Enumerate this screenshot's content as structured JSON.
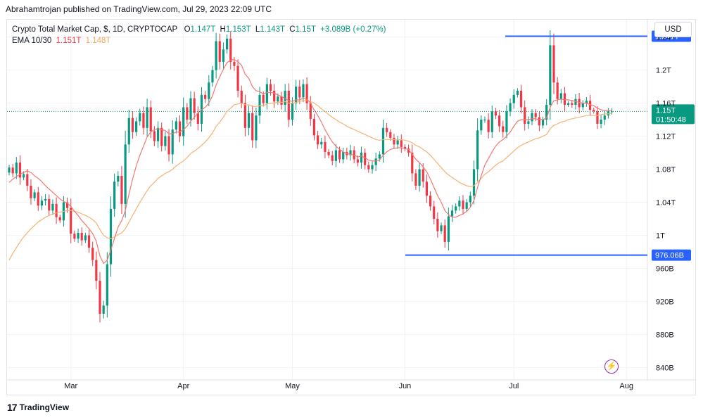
{
  "header": {
    "publish_line": "Abrahamtrojan published on TradingView.com, Jul 29, 2023 22:09 UTC"
  },
  "legend": {
    "symbol": "Crypto Total Market Cap, $, 1D, CRYPTOCAP",
    "o_label": "O",
    "o_value": "1.147T",
    "h_label": "H",
    "h_value": "1.153T",
    "l_label": "L",
    "l_value": "1.143T",
    "c_label": "C",
    "c_value": "1.15T",
    "change": "+3.089B (+0.27%)",
    "ema_label": "EMA 10/30",
    "ema10_value": "1.151T",
    "ema30_value": "1.148T"
  },
  "currency_button": "USD",
  "footer": {
    "brand": "TradingView",
    "logo_glyph": "17"
  },
  "alert_glyph": "⚡",
  "colors": {
    "up": "#089981",
    "down": "#f23645",
    "ema10": "#f2786f",
    "ema30": "#f7b272",
    "level": "#2962ff"
  },
  "chart_data": {
    "type": "candlestick",
    "title": "Crypto Total Market Cap, $, 1D, CRYPTOCAP",
    "ylim": [
      825,
      1261
    ],
    "y_ticks": [
      {
        "v": 840,
        "label": "840B"
      },
      {
        "v": 880,
        "label": "880B"
      },
      {
        "v": 920,
        "label": "920B"
      },
      {
        "v": 960,
        "label": "960B"
      },
      {
        "v": 1000,
        "label": "1T"
      },
      {
        "v": 1040,
        "label": "1.04T"
      },
      {
        "v": 1080,
        "label": "1.08T"
      },
      {
        "v": 1120,
        "label": "1.12T"
      },
      {
        "v": 1160,
        "label": "1.16T"
      },
      {
        "v": 1200,
        "label": "1.2T"
      },
      {
        "v": 1240,
        "label": "1.24T"
      }
    ],
    "x_ticks": [
      {
        "i": 17,
        "label": "Mar"
      },
      {
        "i": 48,
        "label": "Apr"
      },
      {
        "i": 78,
        "label": "May"
      },
      {
        "i": 109,
        "label": "Jun"
      },
      {
        "i": 139,
        "label": "Jul"
      },
      {
        "i": 170,
        "label": "Aug"
      }
    ],
    "closes": [
      1082,
      1075,
      1088,
      1070,
      1074,
      1060,
      1045,
      1052,
      1036,
      1042,
      1044,
      1030,
      1038,
      1022,
      1018,
      1040,
      1033,
      1002,
      996,
      1003,
      994,
      1000,
      985,
      970,
      945,
      905,
      915,
      965,
      1032,
      1065,
      1072,
      1038,
      1110,
      1142,
      1125,
      1138,
      1148,
      1130,
      1155,
      1126,
      1114,
      1130,
      1108,
      1120,
      1098,
      1128,
      1138,
      1120,
      1155,
      1140,
      1166,
      1148,
      1135,
      1170,
      1165,
      1185,
      1200,
      1235,
      1210,
      1225,
      1238,
      1210,
      1205,
      1175,
      1160,
      1130,
      1148,
      1115,
      1145,
      1170,
      1160,
      1183,
      1175,
      1162,
      1168,
      1158,
      1175,
      1140,
      1160,
      1180,
      1167,
      1183,
      1160,
      1141,
      1121,
      1110,
      1113,
      1101,
      1097,
      1090,
      1103,
      1092,
      1101,
      1097,
      1103,
      1092,
      1088,
      1100,
      1085,
      1080,
      1085,
      1093,
      1098,
      1130,
      1125,
      1118,
      1110,
      1115,
      1107,
      1105,
      1100,
      1075,
      1060,
      1080,
      1065,
      1048,
      1035,
      1020,
      1005,
      1012,
      992,
      1023,
      1030,
      1035,
      1042,
      1032,
      1040,
      1048,
      1080,
      1127,
      1140,
      1140,
      1125,
      1150,
      1145,
      1132,
      1125,
      1150,
      1160,
      1170,
      1175,
      1155,
      1135,
      1138,
      1148,
      1143,
      1133,
      1140,
      1158,
      1230,
      1185,
      1165,
      1172,
      1158,
      1160,
      1158,
      1165,
      1155,
      1160,
      1163,
      1152,
      1150,
      1135,
      1140,
      1145,
      1150,
      1150
    ],
    "ema10": [
      1064,
      1068,
      1071,
      1074,
      1076,
      1078,
      1076,
      1072,
      1069,
      1065,
      1060,
      1056,
      1052,
      1048,
      1044,
      1041,
      1039,
      1035,
      1029,
      1024,
      1018,
      1013,
      1008,
      1002,
      993,
      975,
      966,
      970,
      982,
      996,
      1010,
      1018,
      1030,
      1050,
      1068,
      1084,
      1097,
      1108,
      1119,
      1125,
      1128,
      1129,
      1128,
      1127,
      1123,
      1123,
      1125,
      1125,
      1128,
      1132,
      1138,
      1143,
      1148,
      1152,
      1155,
      1160,
      1169,
      1182,
      1192,
      1201,
      1209,
      1212,
      1213,
      1210,
      1206,
      1195,
      1190,
      1180,
      1175,
      1174,
      1171,
      1173,
      1173,
      1172,
      1170,
      1168,
      1166,
      1163,
      1162,
      1164,
      1164,
      1166,
      1165,
      1160,
      1152,
      1145,
      1137,
      1128,
      1120,
      1113,
      1108,
      1104,
      1101,
      1099,
      1098,
      1097,
      1095,
      1096,
      1094,
      1091,
      1090,
      1090,
      1091,
      1097,
      1101,
      1104,
      1105,
      1106,
      1106,
      1105,
      1104,
      1098,
      1092,
      1088,
      1083,
      1077,
      1068,
      1058,
      1048,
      1040,
      1030,
      1025,
      1022,
      1022,
      1024,
      1026,
      1029,
      1034,
      1042,
      1058,
      1072,
      1085,
      1093,
      1101,
      1108,
      1113,
      1116,
      1120,
      1125,
      1132,
      1138,
      1140,
      1140,
      1140,
      1141,
      1141,
      1140,
      1140,
      1142,
      1155,
      1163,
      1164,
      1165,
      1164,
      1164,
      1163,
      1162,
      1161,
      1160,
      1160,
      1158,
      1157,
      1154,
      1152,
      1151,
      1151,
      1151
    ],
    "ema30": [
      970,
      978,
      985,
      992,
      998,
      1003,
      1008,
      1012,
      1016,
      1019,
      1022,
      1024,
      1026,
      1027,
      1028,
      1029,
      1030,
      1030,
      1029,
      1028,
      1026,
      1024,
      1022,
      1019,
      1015,
      1007,
      1000,
      997,
      996,
      998,
      1001,
      1003,
      1008,
      1016,
      1024,
      1032,
      1040,
      1047,
      1054,
      1060,
      1064,
      1069,
      1072,
      1075,
      1077,
      1080,
      1084,
      1087,
      1090,
      1094,
      1099,
      1102,
      1105,
      1109,
      1113,
      1118,
      1124,
      1132,
      1137,
      1143,
      1150,
      1154,
      1158,
      1159,
      1160,
      1158,
      1158,
      1156,
      1156,
      1157,
      1157,
      1159,
      1160,
      1160,
      1161,
      1161,
      1162,
      1160,
      1160,
      1161,
      1162,
      1163,
      1163,
      1162,
      1160,
      1157,
      1153,
      1150,
      1146,
      1143,
      1140,
      1137,
      1135,
      1132,
      1130,
      1128,
      1126,
      1124,
      1122,
      1120,
      1118,
      1116,
      1115,
      1116,
      1116,
      1116,
      1116,
      1116,
      1116,
      1115,
      1114,
      1112,
      1109,
      1107,
      1104,
      1101,
      1097,
      1092,
      1087,
      1082,
      1077,
      1073,
      1070,
      1067,
      1064,
      1062,
      1060,
      1059,
      1060,
      1064,
      1069,
      1074,
      1077,
      1081,
      1085,
      1088,
      1090,
      1094,
      1098,
      1102,
      1106,
      1109,
      1111,
      1113,
      1115,
      1117,
      1118,
      1120,
      1122,
      1129,
      1133,
      1135,
      1137,
      1138,
      1140,
      1141,
      1142,
      1143,
      1144,
      1145,
      1145,
      1145,
      1145,
      1146,
      1147,
      1147,
      1148
    ],
    "level_high": {
      "value": 1241,
      "label": "1.241T"
    },
    "level_low": {
      "value": 976.06,
      "label": "976.06B"
    },
    "last_price": {
      "value": 1150,
      "label": "1.15T",
      "countdown": "01:50:48"
    }
  }
}
